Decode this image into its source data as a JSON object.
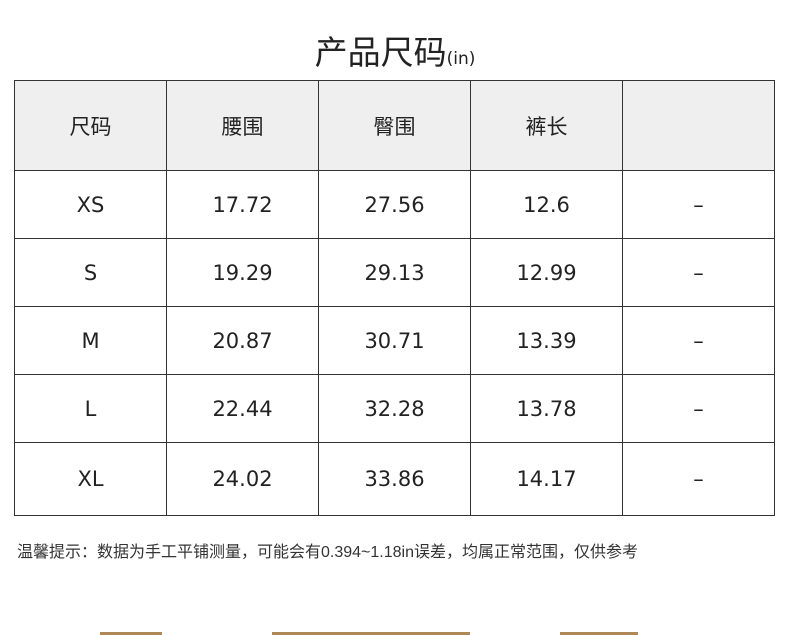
{
  "title": {
    "main": "产品尺码",
    "unit": "(in)"
  },
  "table": {
    "headers": [
      "尺码",
      "腰围",
      "臀围",
      "裤长",
      ""
    ],
    "rows": [
      [
        "XS",
        "17.72",
        "27.56",
        "12.6",
        "–"
      ],
      [
        "S",
        "19.29",
        "29.13",
        "12.99",
        "–"
      ],
      [
        "M",
        "20.87",
        "30.71",
        "13.39",
        "–"
      ],
      [
        "L",
        "22.44",
        "32.28",
        "13.78",
        "–"
      ],
      [
        "XL",
        "24.02",
        "33.86",
        "14.17",
        "–"
      ]
    ]
  },
  "note": "温馨提示：数据为手工平铺测量，可能会有0.394~1.18in误差，均属正常范围，仅供参考"
}
